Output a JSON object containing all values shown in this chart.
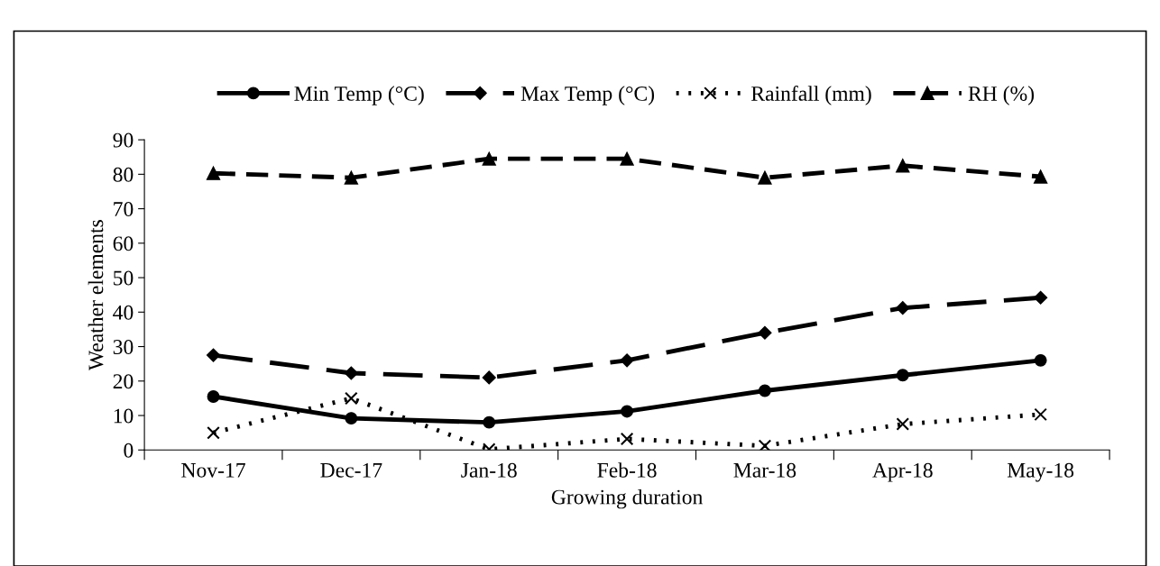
{
  "chart_data": {
    "type": "line",
    "xlabel": "Growing duration",
    "ylabel": "Weather elements",
    "categories": [
      "Nov-17",
      "Dec-17",
      "Jan-18",
      "Feb-18",
      "Mar-18",
      "Apr-18",
      "May-18"
    ],
    "series": [
      {
        "name": "Min Temp (°C)",
        "color": "#000000",
        "marker": "circle",
        "line_style": "solid",
        "values": [
          15.5,
          9.2,
          8,
          11.2,
          17.2,
          21.7,
          26
        ]
      },
      {
        "name": "Max Temp (°C)",
        "color": "#000000",
        "marker": "diamond",
        "line_style": "dashed",
        "values": [
          27.5,
          22.3,
          21,
          26,
          34,
          41.2,
          44.2
        ]
      },
      {
        "name": "Rainfall (mm)",
        "color": "#000000",
        "marker": "cross",
        "line_style": "dotted",
        "values": [
          5,
          15,
          0.2,
          3.2,
          1.2,
          7.5,
          10.3
        ]
      },
      {
        "name": "RH (%)",
        "color": "#000000",
        "marker": "triangle",
        "line_style": "dashed",
        "values": [
          80.3,
          79,
          84.5,
          84.5,
          79,
          82.5,
          79.3
        ]
      }
    ],
    "ylim": [
      0,
      90
    ],
    "yticks": [
      0,
      10,
      20,
      30,
      40,
      50,
      60,
      70,
      80,
      90
    ],
    "grid": false,
    "legend": "top"
  }
}
